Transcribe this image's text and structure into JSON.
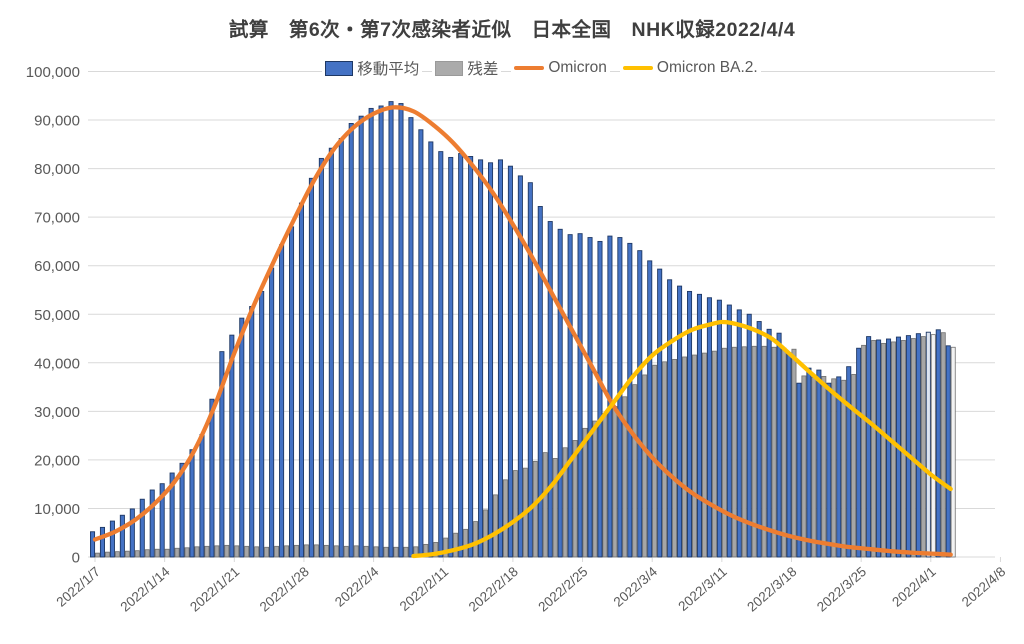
{
  "title": {
    "text": "試算　第6次・第7次感染者近似　日本全国　NHK収録2022/4/4"
  },
  "legend": {
    "items": [
      {
        "label": "移動平均",
        "swatch": "bar-blue"
      },
      {
        "label": "残差",
        "swatch": "bar-gray"
      },
      {
        "label": "Omicron",
        "swatch": "line-orange"
      },
      {
        "label": "Omicron BA.2.",
        "swatch": "line-yellow"
      }
    ]
  },
  "colors": {
    "bar_blue": "#4472C4",
    "bar_blue_border": "#1E3864",
    "bar_gray": "#A6A6A6",
    "bar_gray_border": "#6E6E6E",
    "bar_blue_pale": "#DCE4F1",
    "bar_gray_pale": "#F2F2F2",
    "line_omicron": "#ED7D31",
    "line_ba2": "#FFC000",
    "gridline": "#D9D9D9",
    "axis_text": "#595959",
    "title_text": "#3F3F3F"
  },
  "chart_data": {
    "type": "bar+line combo",
    "title": "試算　第6次・第7次感染者近似　日本全国　NHK収録2022/4/4",
    "xlabel": "",
    "ylabel": "",
    "ylim": [
      0,
      100000
    ],
    "grid": "horizontal",
    "legend_position": "top-center",
    "y_tick_labels": [
      "0",
      "10,000",
      "20,000",
      "30,000",
      "40,000",
      "50,000",
      "60,000",
      "70,000",
      "80,000",
      "90,000",
      "100,000"
    ],
    "x_tick_labels": [
      "2022/1/7",
      "2022/1/14",
      "2022/1/21",
      "2022/1/28",
      "2022/2/4",
      "2022/2/11",
      "2022/2/18",
      "2022/2/25",
      "2022/3/4",
      "2022/3/11",
      "2022/3/18",
      "2022/3/25",
      "2022/4/1",
      "2022/4/8"
    ],
    "categories": [
      "2022/1/7",
      "2022/1/8",
      "2022/1/9",
      "2022/1/10",
      "2022/1/11",
      "2022/1/12",
      "2022/1/13",
      "2022/1/14",
      "2022/1/15",
      "2022/1/16",
      "2022/1/17",
      "2022/1/18",
      "2022/1/19",
      "2022/1/20",
      "2022/1/21",
      "2022/1/22",
      "2022/1/23",
      "2022/1/24",
      "2022/1/25",
      "2022/1/26",
      "2022/1/27",
      "2022/1/28",
      "2022/1/29",
      "2022/1/30",
      "2022/1/31",
      "2022/2/1",
      "2022/2/2",
      "2022/2/3",
      "2022/2/4",
      "2022/2/5",
      "2022/2/6",
      "2022/2/7",
      "2022/2/8",
      "2022/2/9",
      "2022/2/10",
      "2022/2/11",
      "2022/2/12",
      "2022/2/13",
      "2022/2/14",
      "2022/2/15",
      "2022/2/16",
      "2022/2/17",
      "2022/2/18",
      "2022/2/19",
      "2022/2/20",
      "2022/2/21",
      "2022/2/22",
      "2022/2/23",
      "2022/2/24",
      "2022/2/25",
      "2022/2/26",
      "2022/2/27",
      "2022/2/28",
      "2022/3/1",
      "2022/3/2",
      "2022/3/3",
      "2022/3/4",
      "2022/3/5",
      "2022/3/6",
      "2022/3/7",
      "2022/3/8",
      "2022/3/9",
      "2022/3/10",
      "2022/3/11",
      "2022/3/12",
      "2022/3/13",
      "2022/3/14",
      "2022/3/15",
      "2022/3/16",
      "2022/3/17",
      "2022/3/18",
      "2022/3/19",
      "2022/3/20",
      "2022/3/21",
      "2022/3/22",
      "2022/3/23",
      "2022/3/24",
      "2022/3/25",
      "2022/3/26",
      "2022/3/27",
      "2022/3/28",
      "2022/3/29",
      "2022/3/30",
      "2022/3/31",
      "2022/4/1",
      "2022/4/2",
      "2022/4/3"
    ],
    "series": [
      {
        "name": "移動平均",
        "type": "bar",
        "color": "#4472C4",
        "border": "#1E3864",
        "values": [
          5200,
          6100,
          7400,
          8600,
          9900,
          11900,
          13800,
          15100,
          17300,
          19300,
          22100,
          25200,
          32500,
          42300,
          45700,
          49200,
          51600,
          54700,
          59500,
          64300,
          68000,
          72900,
          78000,
          82100,
          84200,
          86200,
          89300,
          90800,
          92400,
          92900,
          93800,
          93400,
          90500,
          88000,
          85500,
          83500,
          82300,
          83100,
          82500,
          81800,
          81200,
          81800,
          80500,
          78500,
          77100,
          72200,
          69100,
          67500,
          66400,
          66600,
          65800,
          65000,
          66100,
          65800,
          64600,
          63100,
          61000,
          59300,
          57100,
          55800,
          54700,
          54100,
          53400,
          52900,
          51900,
          50900,
          50000,
          48500,
          46900,
          46100,
          42000,
          35800,
          38900,
          38500,
          35800,
          37100,
          39200,
          43000,
          45400,
          44700,
          44900,
          45300,
          45600,
          46000,
          46300,
          46800,
          43500
        ]
      },
      {
        "name": "残差",
        "type": "bar",
        "color": "#A6A6A6",
        "border": "#6E6E6E",
        "values": [
          800,
          1000,
          1100,
          1200,
          1300,
          1500,
          1600,
          1600,
          1800,
          1900,
          2100,
          2200,
          2300,
          2400,
          2300,
          2200,
          2100,
          2000,
          2200,
          2300,
          2400,
          2500,
          2500,
          2400,
          2300,
          2200,
          2300,
          2200,
          2100,
          2000,
          2000,
          2000,
          2100,
          2600,
          3000,
          3900,
          4900,
          5700,
          7300,
          9700,
          12800,
          15900,
          17800,
          18300,
          19700,
          21500,
          20300,
          22500,
          24000,
          26500,
          28000,
          29500,
          31000,
          33000,
          35500,
          37500,
          39500,
          40200,
          40700,
          41200,
          41600,
          42000,
          42400,
          43000,
          43200,
          43300,
          43400,
          43400,
          43200,
          43000,
          42800,
          37300,
          37000,
          37200,
          36700,
          36400,
          37600,
          43600,
          44600,
          44000,
          44300,
          44600,
          45000,
          45400,
          45800,
          46200,
          43200
        ]
      },
      {
        "name": "Omicron",
        "type": "line",
        "color": "#ED7D31",
        "points": [
          [
            0,
            3600
          ],
          [
            2,
            5200
          ],
          [
            4,
            7600
          ],
          [
            6,
            11000
          ],
          [
            8,
            15500
          ],
          [
            10,
            22000
          ],
          [
            12,
            31000
          ],
          [
            14,
            42000
          ],
          [
            16,
            52000
          ],
          [
            18,
            61000
          ],
          [
            20,
            69500
          ],
          [
            22,
            77500
          ],
          [
            24,
            84000
          ],
          [
            26,
            88500
          ],
          [
            28,
            91300
          ],
          [
            30,
            92600
          ],
          [
            32,
            91800
          ],
          [
            34,
            89000
          ],
          [
            36,
            85300
          ],
          [
            38,
            80500
          ],
          [
            40,
            75000
          ],
          [
            42,
            68500
          ],
          [
            44,
            61500
          ],
          [
            46,
            54000
          ],
          [
            48,
            46500
          ],
          [
            50,
            39000
          ],
          [
            52,
            31500
          ],
          [
            54,
            25500
          ],
          [
            56,
            20500
          ],
          [
            58,
            16500
          ],
          [
            60,
            13200
          ],
          [
            62,
            10700
          ],
          [
            64,
            8500
          ],
          [
            66,
            6800
          ],
          [
            68,
            5400
          ],
          [
            70,
            4200
          ],
          [
            72,
            3300
          ],
          [
            74,
            2600
          ],
          [
            76,
            2000
          ],
          [
            78,
            1600
          ],
          [
            80,
            1200
          ],
          [
            82,
            900
          ],
          [
            84,
            700
          ],
          [
            86,
            500
          ]
        ]
      },
      {
        "name": "Omicron BA.2.",
        "type": "line",
        "color": "#FFC000",
        "points": [
          [
            32,
            200
          ],
          [
            34,
            600
          ],
          [
            36,
            1400
          ],
          [
            38,
            2600
          ],
          [
            40,
            4600
          ],
          [
            42,
            7200
          ],
          [
            44,
            10500
          ],
          [
            46,
            15000
          ],
          [
            48,
            20500
          ],
          [
            50,
            26000
          ],
          [
            52,
            31500
          ],
          [
            54,
            37000
          ],
          [
            56,
            41500
          ],
          [
            58,
            44500
          ],
          [
            60,
            46800
          ],
          [
            62,
            48000
          ],
          [
            63,
            48400
          ],
          [
            64,
            48200
          ],
          [
            66,
            47000
          ],
          [
            68,
            45000
          ],
          [
            70,
            41500
          ],
          [
            72,
            37800
          ],
          [
            74,
            34200
          ],
          [
            76,
            30800
          ],
          [
            78,
            27500
          ],
          [
            80,
            24000
          ],
          [
            82,
            20500
          ],
          [
            84,
            17000
          ],
          [
            86,
            14000
          ]
        ]
      }
    ],
    "pale_days": {
      "blue": [
        84
      ],
      "gray": [
        84,
        86
      ]
    }
  }
}
